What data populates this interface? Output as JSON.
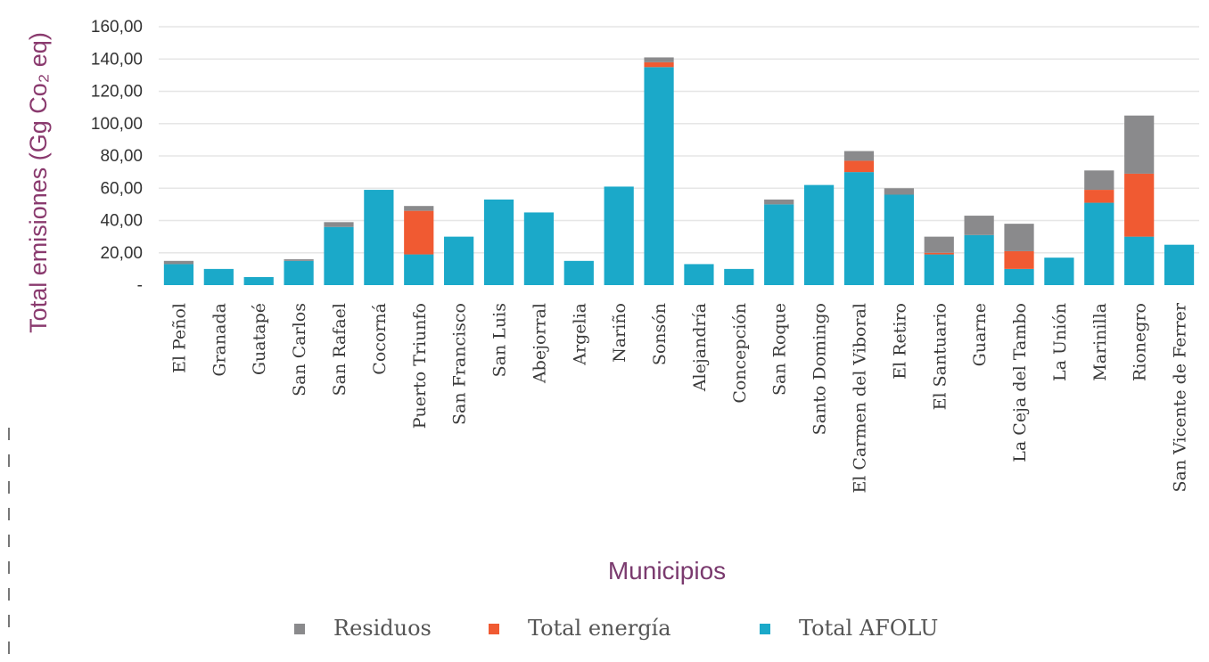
{
  "chart_data": {
    "type": "bar",
    "stacked": true,
    "xlabel": "Municipios",
    "ylabel": "Total emisiones (Gg Co₂ eq)",
    "ylim": [
      0,
      160
    ],
    "yticks": [
      "-",
      "20,00",
      "40,00",
      "60,00",
      "80,00",
      "100,00",
      "120,00",
      "140,00",
      "160,00"
    ],
    "grid": true,
    "legend_position": "bottom",
    "categories": [
      "El Peñol",
      "Granada",
      "Guatapé",
      "San Carlos",
      "San Rafael",
      "Cocorná",
      "Puerto Triunfo",
      "San Francisco",
      "San Luis",
      "Abejorral",
      "Argelia",
      "Nariño",
      "Sonsón",
      "Alejandría",
      "Concepción",
      "San Roque",
      "Santo Domingo",
      "El Carmen del Viboral",
      "El Retiro",
      "El Santuario",
      "Guarne",
      "La Ceja del Tambo",
      "La Unión",
      "Marinilla",
      "Rionegro",
      "San Vicente de Ferrer"
    ],
    "series": [
      {
        "name": "Total AFOLU",
        "color": "#1ba9c9",
        "values": [
          13,
          10,
          5,
          15,
          36,
          59,
          19,
          30,
          53,
          45,
          15,
          61,
          135,
          13,
          10,
          50,
          62,
          70,
          56,
          19,
          31,
          10,
          17,
          51,
          30,
          25
        ]
      },
      {
        "name": "Total energía",
        "color": "#f05a32",
        "values": [
          0,
          0,
          0,
          0,
          0,
          0,
          27,
          0,
          0,
          0,
          0,
          0,
          3,
          0,
          0,
          0,
          0,
          7,
          0,
          1,
          0,
          11,
          0,
          8,
          39,
          0
        ]
      },
      {
        "name": "Residuos",
        "color": "#8a8a8c",
        "values": [
          2,
          0,
          0,
          1,
          3,
          0,
          3,
          0,
          0,
          0,
          0,
          0,
          3,
          0,
          0,
          3,
          0,
          6,
          4,
          10,
          12,
          17,
          0,
          12,
          36,
          0
        ]
      }
    ],
    "legend": [
      "Residuos",
      "Total energía",
      "Total AFOLU"
    ]
  }
}
